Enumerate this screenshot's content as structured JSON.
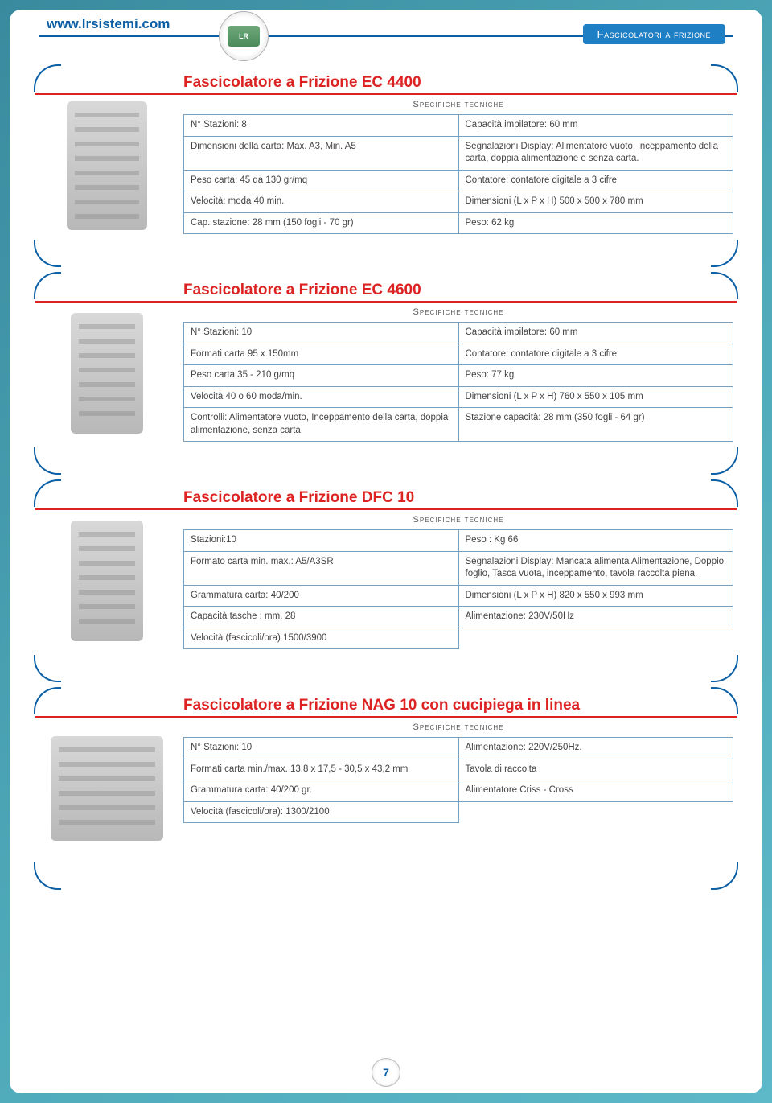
{
  "header": {
    "site_url": "www.lrsistemi.com",
    "category": "Fascicolatori a frizione",
    "logo_text": "LR"
  },
  "page_number": "7",
  "colors": {
    "accent_blue": "#0b5fa5",
    "accent_red": "#d22",
    "badge_bg": "#1e7fc4",
    "border_blue": "#7aa0c0",
    "bg_grad_from": "#3a8a9e",
    "bg_grad_to": "#5db8c8"
  },
  "common": {
    "spec_heading": "Specifiche tecniche"
  },
  "products": [
    {
      "title": "Fascicolatore a Frizione EC 4400",
      "rows": [
        [
          "N° Stazioni: 8",
          "Capacità impilatore: 60 mm"
        ],
        [
          "Dimensioni della carta: Max. A3,  Min. A5",
          "Segnalazioni Display: Alimentatore vuoto, inceppamento della carta, doppia alimentazione e senza carta."
        ],
        [
          "Peso carta: 45 da 130 gr/mq",
          "Contatore: contatore digitale a 3 cifre"
        ],
        [
          "Velocità: moda 40 min.",
          "Dimensioni (L x P x H) 500 x 500 x 780 mm"
        ],
        [
          "Cap. stazione: 28 mm (150 fogli - 70 gr)",
          "Peso: 62 kg"
        ]
      ],
      "img_class": "machine-placeholder"
    },
    {
      "title": "Fascicolatore a Frizione EC 4600",
      "rows": [
        [
          "N° Stazioni: 10",
          "Capacità impilatore: 60 mm"
        ],
        [
          "Formati carta 95 x 150mm",
          "Contatore: contatore digitale a 3 cifre"
        ],
        [
          "Peso carta 35 - 210 g/mq",
          "Peso: 77 kg"
        ],
        [
          "Velocità 40 o 60 moda/min.",
          "Dimensioni (L x P x H) 760 x 550 x 105 mm"
        ],
        [
          "Controlli: Alimentatore vuoto, Inceppamento della carta, doppia alimentazione, senza carta",
          "Stazione capacità: 28 mm (350 fogli - 64 gr)"
        ]
      ],
      "img_class": "machine-placeholder machine-small"
    },
    {
      "title": "Fascicolatore a Frizione DFC 10",
      "rows": [
        [
          "Stazioni:10",
          "Peso : Kg 66"
        ],
        [
          "Formato carta min. max.: A5/A3SR",
          "Segnalazioni Display: Mancata alimenta Alimentazione, Doppio foglio, Tasca vuota, inceppamento, tavola raccolta piena."
        ],
        [
          "Grammatura carta: 40/200",
          "Dimensioni (L x P x H) 820 x 550 x 993 mm"
        ],
        [
          "Capacità tasche : mm. 28",
          "Alimentazione: 230V/50Hz"
        ],
        [
          "Velocità (fascicoli/ora) 1500/3900",
          ""
        ]
      ],
      "img_class": "machine-placeholder machine-small"
    },
    {
      "title": "Fascicolatore a Frizione NAG 10 con cucipiega in linea",
      "rows": [
        [
          "N° Stazioni: 10",
          "Alimentazione: 220V/250Hz."
        ],
        [
          "Formati carta min./max. 13.8 x 17,5 - 30,5 x 43,2 mm",
          "Tavola di raccolta"
        ],
        [
          "Grammatura carta: 40/200 gr.",
          "Alimentatore Criss -  Cross"
        ],
        [
          "Velocità (fascicoli/ora): 1300/2100",
          ""
        ]
      ],
      "img_class": "machine-placeholder machine-wide"
    }
  ]
}
